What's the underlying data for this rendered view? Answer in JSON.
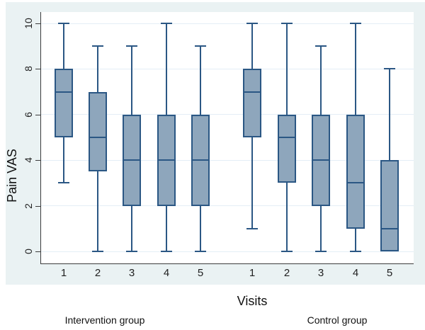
{
  "chart_data": {
    "type": "boxplot",
    "title": "",
    "xlabel": "Visits",
    "ylabel": "Pain VAS",
    "ylim": [
      0,
      10
    ],
    "yticks": [
      0,
      2,
      4,
      6,
      8,
      10
    ],
    "grid": true,
    "legend_position": "none",
    "groups": [
      {
        "label": "Intervention group",
        "boxes": [
          {
            "visit": "1",
            "min": 3,
            "q1": 5,
            "median": 7,
            "q3": 8,
            "max": 10
          },
          {
            "visit": "2",
            "min": 0,
            "q1": 3.5,
            "median": 5,
            "q3": 7,
            "max": 9
          },
          {
            "visit": "3",
            "min": 0,
            "q1": 2,
            "median": 4,
            "q3": 6,
            "max": 9
          },
          {
            "visit": "4",
            "min": 0,
            "q1": 2,
            "median": 4,
            "q3": 6,
            "max": 10
          },
          {
            "visit": "5",
            "min": 0,
            "q1": 2,
            "median": 4,
            "q3": 6,
            "max": 9
          }
        ]
      },
      {
        "label": "Control group",
        "boxes": [
          {
            "visit": "1",
            "min": 1,
            "q1": 5,
            "median": 7,
            "q3": 8,
            "max": 10
          },
          {
            "visit": "2",
            "min": 0,
            "q1": 3,
            "median": 5,
            "q3": 6,
            "max": 10
          },
          {
            "visit": "3",
            "min": 0,
            "q1": 2,
            "median": 4,
            "q3": 6,
            "max": 9
          },
          {
            "visit": "4",
            "min": 0,
            "q1": 1,
            "median": 3,
            "q3": 6,
            "max": 10
          },
          {
            "visit": "5",
            "min": 0,
            "q1": 0,
            "median": 1,
            "q3": 4,
            "max": 8
          }
        ]
      }
    ],
    "colors": {
      "background": "#eaf2f3",
      "plot_background": "#ffffff",
      "gridline": "#e4eef6",
      "axis": "#3c3c3c",
      "box_fill": "#8ea6bc",
      "box_line": "#2b5784",
      "text": "#1a1a1a"
    }
  }
}
